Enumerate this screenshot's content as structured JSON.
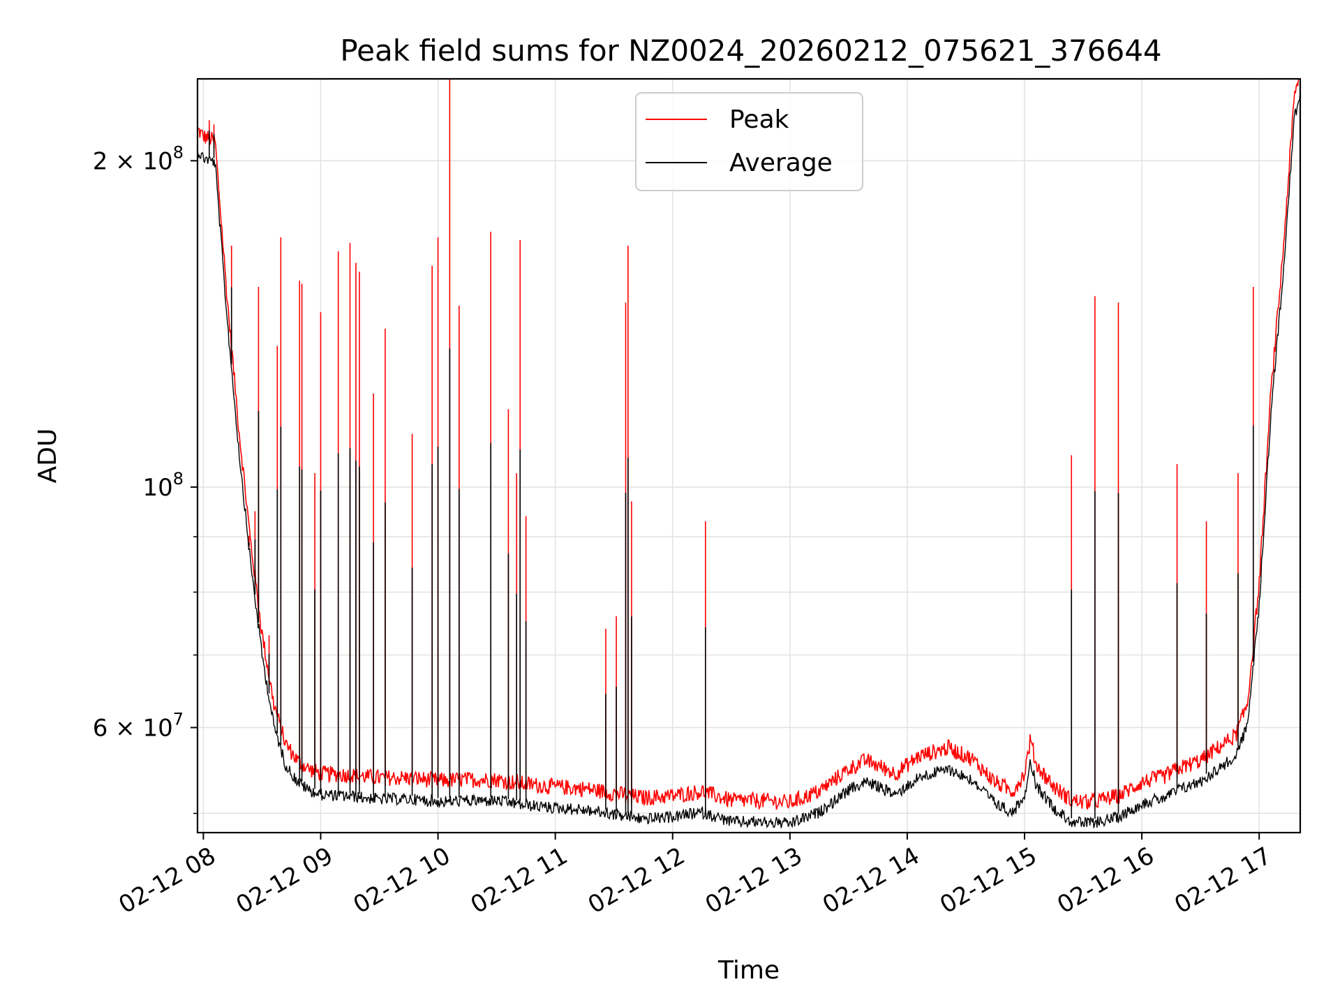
{
  "chart_data": {
    "type": "line",
    "title": "Peak field sums for NZ0024_20260212_075621_376644",
    "xlabel": "Time",
    "ylabel": "ADU",
    "yscale": "log",
    "ylim": [
      48000000,
      238000000
    ],
    "xlim_hours": [
      7.95,
      17.35
    ],
    "grid": true,
    "legend_position": "upper center",
    "x_ticks": [
      {
        "value": 8,
        "label": "02-12 08"
      },
      {
        "value": 9,
        "label": "02-12 09"
      },
      {
        "value": 10,
        "label": "02-12 10"
      },
      {
        "value": 11,
        "label": "02-12 11"
      },
      {
        "value": 12,
        "label": "02-12 12"
      },
      {
        "value": 13,
        "label": "02-12 13"
      },
      {
        "value": 14,
        "label": "02-12 14"
      },
      {
        "value": 15,
        "label": "02-12 15"
      },
      {
        "value": 16,
        "label": "02-12 16"
      },
      {
        "value": 17,
        "label": "02-12 17"
      }
    ],
    "y_major_ticks": [
      {
        "value": 60000000,
        "mantissa": "6 × 10",
        "exp": "7"
      },
      {
        "value": 100000000,
        "mantissa": "10",
        "exp": "8"
      },
      {
        "value": 200000000,
        "mantissa": "2 × 10",
        "exp": "8"
      }
    ],
    "y_minor_ticks": [
      50000000,
      70000000,
      80000000,
      90000000
    ],
    "series": [
      {
        "name": "Peak",
        "color": "#ff0000",
        "baseline_hours": [
          7.95,
          8.0,
          8.1,
          8.2,
          8.3,
          8.4,
          8.5,
          8.6,
          8.7,
          8.8,
          8.9,
          9.0,
          9.25,
          9.5,
          9.75,
          10.0,
          10.25,
          10.5,
          10.75,
          11.0,
          11.25,
          11.5,
          11.75,
          12.0,
          12.25,
          12.5,
          12.75,
          13.0,
          13.25,
          13.5,
          13.65,
          13.9,
          14.1,
          14.35,
          14.55,
          14.75,
          14.9,
          15.0,
          15.05,
          15.1,
          15.25,
          15.4,
          15.55,
          15.8,
          16.0,
          16.2,
          16.3,
          16.5,
          16.7,
          16.8,
          16.9,
          17.0,
          17.1,
          17.2,
          17.3,
          17.35
        ],
        "baseline_values": [
          210000000,
          207000000,
          205000000,
          148000000,
          112000000,
          88000000,
          72000000,
          62000000,
          57000000,
          55000000,
          54000000,
          53500000,
          53300000,
          53000000,
          53000000,
          52700000,
          52800000,
          52800000,
          52300000,
          52000000,
          51800000,
          51300000,
          50800000,
          51000000,
          51500000,
          50500000,
          50500000,
          50300000,
          51500000,
          54000000,
          55000000,
          53500000,
          55500000,
          56500000,
          55200000,
          52500000,
          51500000,
          53500000,
          57500000,
          54500000,
          52000000,
          50500000,
          50300000,
          51000000,
          52500000,
          53200000,
          54000000,
          55000000,
          57000000,
          58000000,
          62000000,
          80000000,
          120000000,
          160000000,
          225000000,
          238000000
        ],
        "spikes": [
          {
            "t": 8.05,
            "v": 218000000
          },
          {
            "t": 8.09,
            "v": 216000000
          },
          {
            "t": 8.24,
            "v": 167000000
          },
          {
            "t": 8.39,
            "v": 88000000
          },
          {
            "t": 8.44,
            "v": 95000000
          },
          {
            "t": 8.47,
            "v": 153000000
          },
          {
            "t": 8.56,
            "v": 73000000
          },
          {
            "t": 8.63,
            "v": 135000000
          },
          {
            "t": 8.66,
            "v": 170000000
          },
          {
            "t": 8.82,
            "v": 155000000
          },
          {
            "t": 8.84,
            "v": 154000000
          },
          {
            "t": 8.95,
            "v": 103000000
          },
          {
            "t": 9.0,
            "v": 145000000
          },
          {
            "t": 9.15,
            "v": 165000000
          },
          {
            "t": 9.25,
            "v": 168000000
          },
          {
            "t": 9.3,
            "v": 161000000
          },
          {
            "t": 9.33,
            "v": 158000000
          },
          {
            "t": 9.45,
            "v": 122000000
          },
          {
            "t": 9.55,
            "v": 140000000
          },
          {
            "t": 9.78,
            "v": 112000000
          },
          {
            "t": 9.95,
            "v": 160000000
          },
          {
            "t": 10.0,
            "v": 170000000
          },
          {
            "t": 10.1,
            "v": 238000000
          },
          {
            "t": 10.18,
            "v": 147000000
          },
          {
            "t": 10.45,
            "v": 172000000
          },
          {
            "t": 10.6,
            "v": 118000000
          },
          {
            "t": 10.67,
            "v": 103000000
          },
          {
            "t": 10.7,
            "v": 169000000
          },
          {
            "t": 10.75,
            "v": 94000000
          },
          {
            "t": 11.43,
            "v": 74000000
          },
          {
            "t": 11.52,
            "v": 76000000
          },
          {
            "t": 11.6,
            "v": 148000000
          },
          {
            "t": 11.62,
            "v": 167000000
          },
          {
            "t": 11.65,
            "v": 97000000
          },
          {
            "t": 12.28,
            "v": 93000000
          },
          {
            "t": 15.4,
            "v": 107000000
          },
          {
            "t": 15.6,
            "v": 150000000
          },
          {
            "t": 15.8,
            "v": 148000000
          },
          {
            "t": 16.3,
            "v": 105000000
          },
          {
            "t": 16.55,
            "v": 93000000
          },
          {
            "t": 16.82,
            "v": 103000000
          },
          {
            "t": 16.95,
            "v": 153000000
          }
        ]
      },
      {
        "name": "Average",
        "color": "#000000",
        "offset_factor": 0.985,
        "spike_factor": 0.62
      }
    ]
  }
}
